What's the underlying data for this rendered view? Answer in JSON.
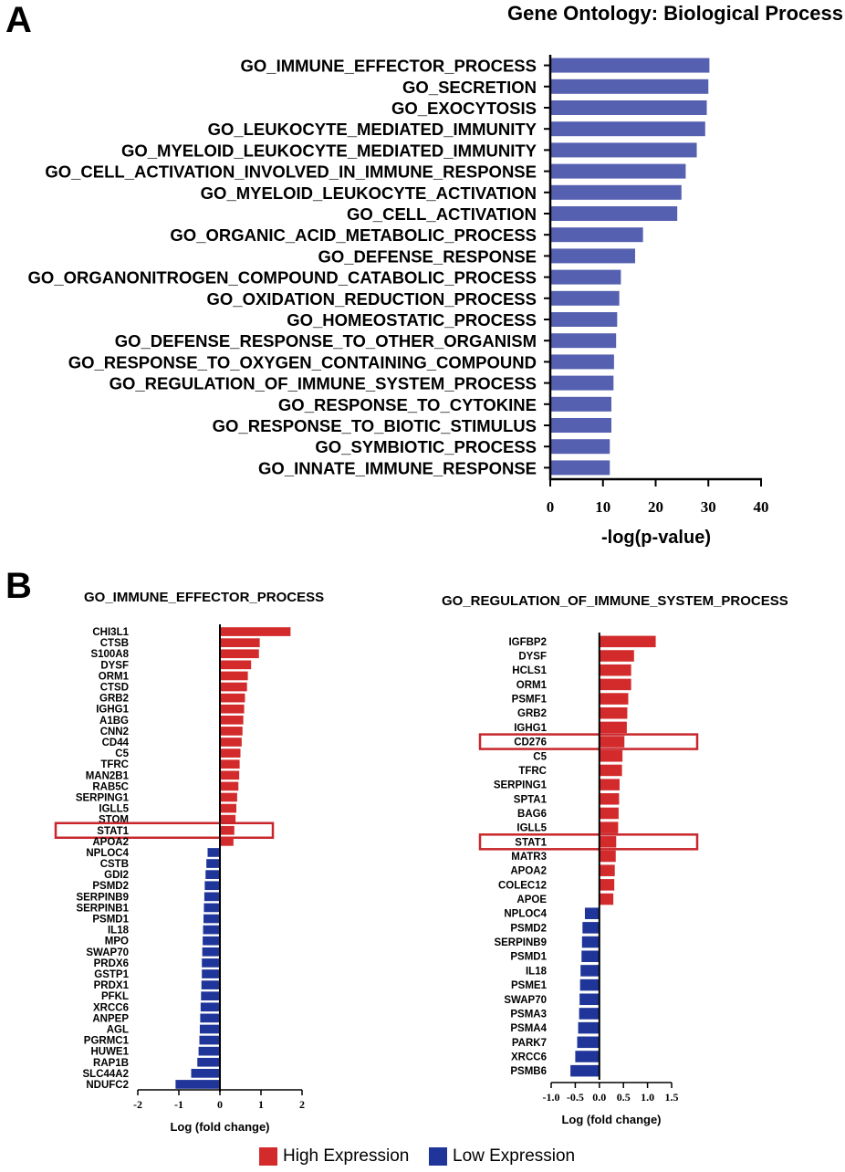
{
  "panel_a_label": "A",
  "panel_b_label": "B",
  "legend": {
    "high": "High Expression",
    "low": "Low Expression",
    "high_color": "#d32b2b",
    "low_color": "#1f3599"
  },
  "colors": {
    "go_bar": "#5560b0",
    "highlight_box": "#c8262b"
  },
  "chart_data": [
    {
      "type": "bar",
      "orientation": "horizontal",
      "title": "Gene Ontology: Biological Process",
      "xlabel": "-log(p-value)",
      "ylabel": "",
      "xlim": [
        0,
        40
      ],
      "xticks": [
        0,
        10,
        20,
        30,
        40
      ],
      "categories": [
        "GO_IMMUNE_EFFECTOR_PROCESS",
        "GO_SECRETION",
        "GO_EXOCYTOSIS",
        "GO_LEUKOCYTE_MEDIATED_IMMUNITY",
        "GO_MYELOID_LEUKOCYTE_MEDIATED_IMMUNITY",
        "GO_CELL_ACTIVATION_INVOLVED_IN_IMMUNE_RESPONSE",
        "GO_MYELOID_LEUKOCYTE_ACTIVATION",
        "GO_CELL_ACTIVATION",
        "GO_ORGANIC_ACID_METABOLIC_PROCESS",
        "GO_DEFENSE_RESPONSE",
        "GO_ORGANONITROGEN_COMPOUND_CATABOLIC_PROCESS",
        "GO_OXIDATION_REDUCTION_PROCESS",
        "GO_HOMEOSTATIC_PROCESS",
        "GO_DEFENSE_RESPONSE_TO_OTHER_ORGANISM",
        "GO_RESPONSE_TO_OXYGEN_CONTAINING_COMPOUND",
        "GO_REGULATION_OF_IMMUNE_SYSTEM_PROCESS",
        "GO_RESPONSE_TO_CYTOKINE",
        "GO_RESPONSE_TO_BIOTIC_STIMULUS",
        "GO_SYMBIOTIC_PROCESS",
        "GO_INNATE_IMMUNE_RESPONSE"
      ],
      "values": [
        30.2,
        30.0,
        29.7,
        29.4,
        27.8,
        25.7,
        24.9,
        24.1,
        17.6,
        16.1,
        13.4,
        13.1,
        12.7,
        12.5,
        12.1,
        12.0,
        11.6,
        11.6,
        11.3,
        11.3
      ],
      "grid": false
    },
    {
      "type": "bar",
      "orientation": "horizontal",
      "title": "GO_IMMUNE_EFFECTOR_PROCESS",
      "xlabel": "Log (fold change)",
      "ylabel": "",
      "xlim": [
        -2,
        2
      ],
      "xticks": [
        -2,
        -1,
        0,
        1,
        2
      ],
      "categories": [
        "CHI3L1",
        "CTSB",
        "S100A8",
        "DYSF",
        "ORM1",
        "CTSD",
        "GRB2",
        "IGHG1",
        "A1BG",
        "CNN2",
        "CD44",
        "C5",
        "TFRC",
        "MAN2B1",
        "RAB5C",
        "SERPING1",
        "IGLL5",
        "STOM",
        "STAT1",
        "APOA2",
        "NPLOC4",
        "CSTB",
        "GDI2",
        "PSMD2",
        "SERPINB9",
        "SERPINB1",
        "PSMD1",
        "IL18",
        "MPO",
        "SWAP70",
        "PRDX6",
        "GSTP1",
        "PRDX1",
        "PFKL",
        "XRCC6",
        "ANPEP",
        "AGL",
        "PGRMC1",
        "HUWE1",
        "RAP1B",
        "SLC44A2",
        "NDUFC2"
      ],
      "values": [
        1.72,
        0.97,
        0.95,
        0.76,
        0.68,
        0.66,
        0.61,
        0.59,
        0.57,
        0.55,
        0.53,
        0.5,
        0.48,
        0.47,
        0.45,
        0.42,
        0.4,
        0.38,
        0.35,
        0.33,
        -0.3,
        -0.33,
        -0.35,
        -0.37,
        -0.38,
        -0.39,
        -0.4,
        -0.41,
        -0.42,
        -0.43,
        -0.44,
        -0.44,
        -0.45,
        -0.46,
        -0.47,
        -0.48,
        -0.49,
        -0.5,
        -0.52,
        -0.55,
        -0.7,
        -1.08
      ],
      "highlighted": [
        "STAT1"
      ],
      "grid": false
    },
    {
      "type": "bar",
      "orientation": "horizontal",
      "title": "GO_REGULATION_OF_IMMUNE_SYSTEM_PROCESS",
      "xlabel": "Log (fold change)",
      "ylabel": "",
      "xlim": [
        -1.0,
        1.5
      ],
      "xticks": [
        "-1.0",
        "-0.5",
        "0.0",
        "0.5",
        "1.0",
        "1.5"
      ],
      "categories": [
        "IGFBP2",
        "DYSF",
        "HCLS1",
        "ORM1",
        "PSMF1",
        "GRB2",
        "IGHG1",
        "CD276",
        "C5",
        "TFRC",
        "SERPING1",
        "SPTA1",
        "BAG6",
        "IGLL5",
        "STAT1",
        "MATR3",
        "APOA2",
        "COLEC12",
        "APOE",
        "NPLOC4",
        "PSMD2",
        "SERPINB9",
        "PSMD1",
        "IL18",
        "PSME1",
        "SWAP70",
        "PSMA3",
        "PSMA4",
        "PARK7",
        "XRCC6",
        "PSMB6"
      ],
      "values": [
        1.17,
        0.72,
        0.66,
        0.66,
        0.6,
        0.58,
        0.57,
        0.52,
        0.48,
        0.47,
        0.42,
        0.41,
        0.4,
        0.39,
        0.35,
        0.34,
        0.32,
        0.31,
        0.29,
        -0.3,
        -0.35,
        -0.36,
        -0.37,
        -0.39,
        -0.4,
        -0.41,
        -0.42,
        -0.44,
        -0.46,
        -0.5,
        -0.6
      ],
      "highlighted": [
        "CD276",
        "STAT1"
      ],
      "grid": false
    }
  ]
}
